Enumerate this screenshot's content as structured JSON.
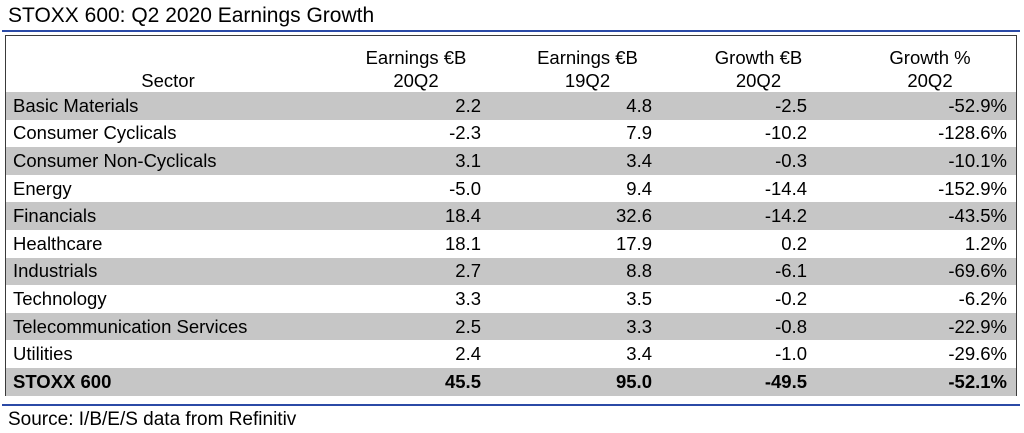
{
  "title": "STOXX 600: Q2 2020 Earnings Growth",
  "source": "Source: I/B/E/S data from Refinitiv",
  "colors": {
    "rule": "#2b4aa6",
    "row_shade": "#c6c6c6"
  },
  "chart_data": {
    "type": "table",
    "title": "STOXX 600: Q2 2020 Earnings Growth",
    "columns": [
      {
        "line1": "",
        "line2": "Sector"
      },
      {
        "line1": "Earnings €B",
        "line2": "20Q2"
      },
      {
        "line1": "Earnings €B",
        "line2": "19Q2"
      },
      {
        "line1": "Growth €B",
        "line2": "20Q2"
      },
      {
        "line1": "Growth %",
        "line2": "20Q2"
      }
    ],
    "rows": [
      [
        "Basic Materials",
        "2.2",
        "4.8",
        "-2.5",
        "-52.9%"
      ],
      [
        "Consumer Cyclicals",
        "-2.3",
        "7.9",
        "-10.2",
        "-128.6%"
      ],
      [
        "Consumer Non-Cyclicals",
        "3.1",
        "3.4",
        "-0.3",
        "-10.1%"
      ],
      [
        "Energy",
        "-5.0",
        "9.4",
        "-14.4",
        "-152.9%"
      ],
      [
        "Financials",
        "18.4",
        "32.6",
        "-14.2",
        "-43.5%"
      ],
      [
        "Healthcare",
        "18.1",
        "17.9",
        "0.2",
        "1.2%"
      ],
      [
        "Industrials",
        "2.7",
        "8.8",
        "-6.1",
        "-69.6%"
      ],
      [
        "Technology",
        "3.3",
        "3.5",
        "-0.2",
        "-6.2%"
      ],
      [
        "Telecommunication Services",
        "2.5",
        "3.3",
        "-0.8",
        "-22.9%"
      ],
      [
        "Utilities",
        "2.4",
        "3.4",
        "-1.0",
        "-29.6%"
      ]
    ],
    "total": [
      "STOXX 600",
      "45.5",
      "95.0",
      "-49.5",
      "-52.1%"
    ],
    "source": "Source: I/B/E/S data from Refinitiv"
  }
}
